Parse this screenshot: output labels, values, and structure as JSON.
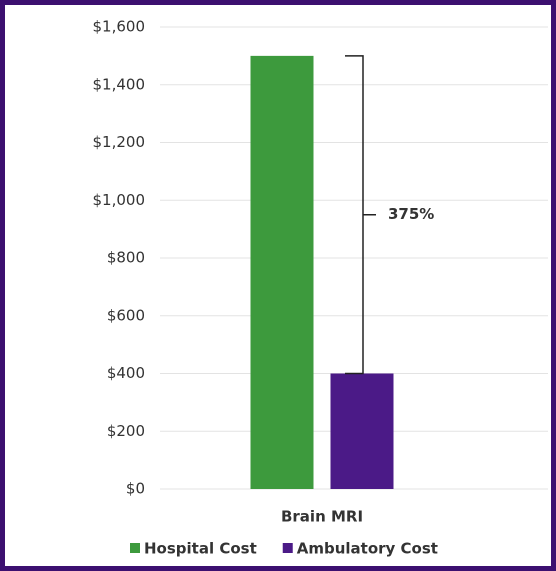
{
  "chart_data": {
    "type": "bar",
    "categories": [
      "Brain MRI"
    ],
    "series": [
      {
        "name": "Hospital Cost",
        "color": "#3d9a3d",
        "values": [
          1500
        ]
      },
      {
        "name": "Ambulatory Cost",
        "color": "#4b1a87",
        "values": [
          400
        ]
      }
    ],
    "annotation": "375%",
    "annotation_color": "#e0662a",
    "ylim": [
      0,
      1600
    ],
    "yticks": [
      {
        "value": 0,
        "label": "$0"
      },
      {
        "value": 200,
        "label": "$200"
      },
      {
        "value": 400,
        "label": "$400"
      },
      {
        "value": 600,
        "label": "$600"
      },
      {
        "value": 800,
        "label": "$800"
      },
      {
        "value": 1000,
        "label": "$1,000"
      },
      {
        "value": 1200,
        "label": "$1,200"
      },
      {
        "value": 1400,
        "label": "$1,400"
      },
      {
        "value": 1600,
        "label": "$1,600"
      }
    ],
    "grid": true
  }
}
